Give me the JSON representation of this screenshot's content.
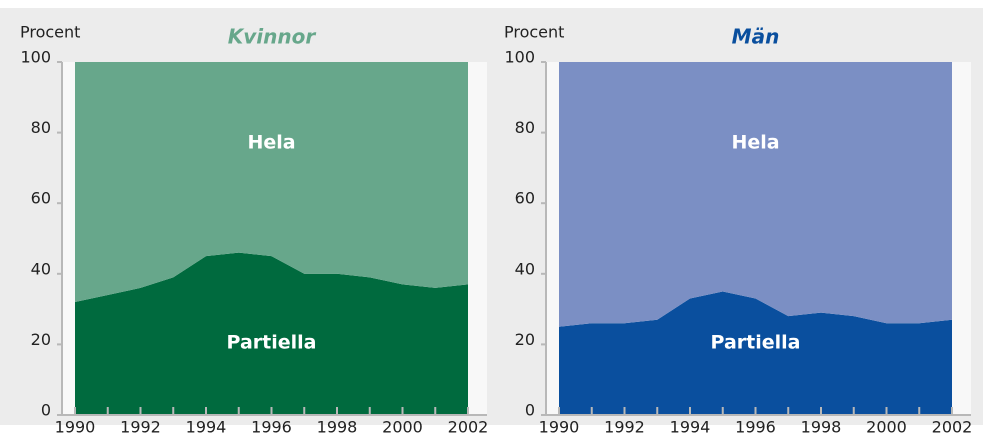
{
  "chart_data": [
    {
      "type": "area",
      "stacked": true,
      "title": "Kvinnor",
      "title_color": "#67a78b",
      "ylabel": "Procent",
      "x": [
        1990,
        1991,
        1992,
        1993,
        1994,
        1995,
        1996,
        1997,
        1998,
        1999,
        2000,
        2001,
        2002
      ],
      "xlim": [
        1990,
        2002
      ],
      "xticks": [
        1990,
        1992,
        1994,
        1996,
        1998,
        2000,
        2002
      ],
      "ylim": [
        0,
        100
      ],
      "yticks": [
        0,
        20,
        40,
        60,
        80,
        100
      ],
      "series": [
        {
          "name": "Partiella",
          "color": "#006a3e",
          "values": [
            32,
            34,
            36,
            39,
            45,
            46,
            45,
            40,
            40,
            39,
            37,
            36,
            37
          ]
        },
        {
          "name": "Hela",
          "color": "#67a78b",
          "values": [
            68,
            66,
            64,
            61,
            55,
            54,
            55,
            60,
            60,
            61,
            63,
            64,
            63
          ]
        }
      ]
    },
    {
      "type": "area",
      "stacked": true,
      "title": "Män",
      "title_color": "#0a4f9e",
      "ylabel": "Procent",
      "x": [
        1990,
        1991,
        1992,
        1993,
        1994,
        1995,
        1996,
        1997,
        1998,
        1999,
        2000,
        2001,
        2002
      ],
      "xlim": [
        1990,
        2002
      ],
      "xticks": [
        1990,
        1992,
        1994,
        1996,
        1998,
        2000,
        2002
      ],
      "ylim": [
        0,
        100
      ],
      "yticks": [
        0,
        20,
        40,
        60,
        80,
        100
      ],
      "series": [
        {
          "name": "Partiella",
          "color": "#0a4f9e",
          "values": [
            25,
            26,
            26,
            27,
            33,
            35,
            33,
            28,
            29,
            28,
            26,
            26,
            27
          ]
        },
        {
          "name": "Hela",
          "color": "#7b8fc4",
          "values": [
            75,
            74,
            74,
            73,
            67,
            65,
            67,
            72,
            71,
            72,
            74,
            74,
            73
          ]
        }
      ]
    }
  ]
}
